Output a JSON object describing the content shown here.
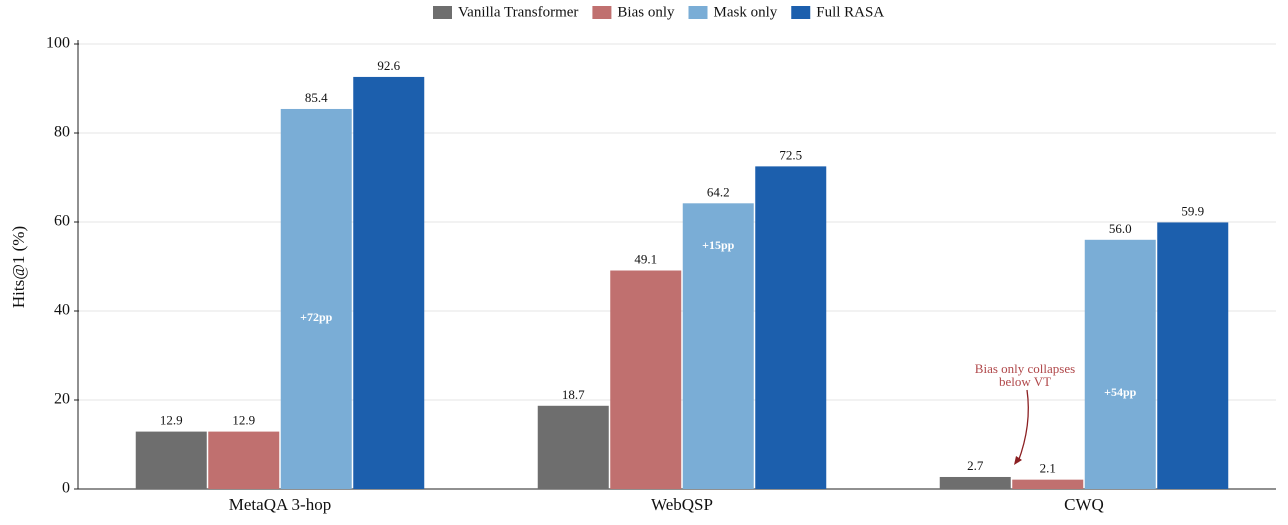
{
  "chart_data": {
    "type": "bar",
    "y_label": "Hits@1 (%)",
    "categories": [
      "MetaQA 3-hop",
      "WebQSP",
      "CWQ"
    ],
    "series": [
      {
        "name": "Vanilla Transformer",
        "color": "#6e6e6e",
        "values": [
          12.9,
          18.7,
          2.7
        ]
      },
      {
        "name": "Bias only",
        "color": "#c0706f",
        "values": [
          12.9,
          49.1,
          2.1
        ]
      },
      {
        "name": "Mask only",
        "color": "#7aadd6",
        "values": [
          85.4,
          64.2,
          56
        ],
        "value_labels": [
          "85.4",
          "64.2",
          "56.0"
        ]
      },
      {
        "name": "Full RASA",
        "color": "#1c5fad",
        "values": [
          92.6,
          72.5,
          59.9
        ]
      }
    ],
    "gain_labels": [
      "+72pp",
      "+15pp",
      "+54pp"
    ],
    "note": [
      "Bias only collapses",
      "below VT"
    ],
    "ylim": [
      0,
      100
    ],
    "yticks": [
      0,
      20,
      40,
      60,
      80,
      100
    ],
    "grid": true,
    "legend": "top"
  }
}
